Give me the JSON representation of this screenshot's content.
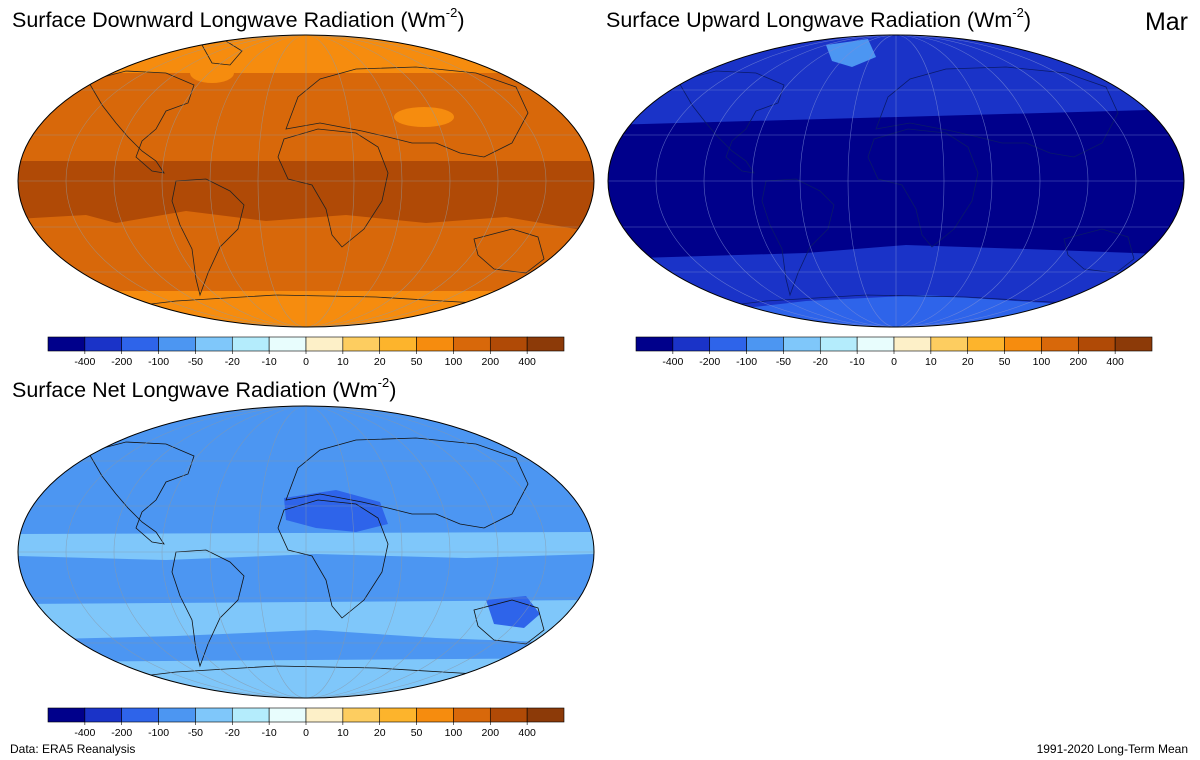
{
  "month_label": "Mar",
  "unit_sup": "-2",
  "panels": {
    "downward": {
      "title_main": "Surface Downward Longwave Radiation (Wm",
      "title_close": ")"
    },
    "upward": {
      "title_main": "Surface Upward Longwave Radiation (Wm",
      "title_close": ")"
    },
    "net": {
      "title_main": "Surface Net Longwave Radiation (Wm",
      "title_close": ")"
    }
  },
  "colorbar": {
    "tick_labels": [
      "-400",
      "-200",
      "-100",
      "-50",
      "-20",
      "-10",
      "0",
      "10",
      "20",
      "50",
      "100",
      "200",
      "400"
    ],
    "colors": [
      "#00008b",
      "#1a33c8",
      "#2e64ea",
      "#4c96f2",
      "#7fc7fa",
      "#b4ecfc",
      "#e8fdfd",
      "#fdf0c8",
      "#fdcd60",
      "#fdb42c",
      "#f68c0e",
      "#d8680a",
      "#b04a06",
      "#8c3a08"
    ]
  },
  "footer": {
    "source": "Data: ERA5 Reanalysis",
    "period": "1991-2020 Long-Term Mean"
  }
}
